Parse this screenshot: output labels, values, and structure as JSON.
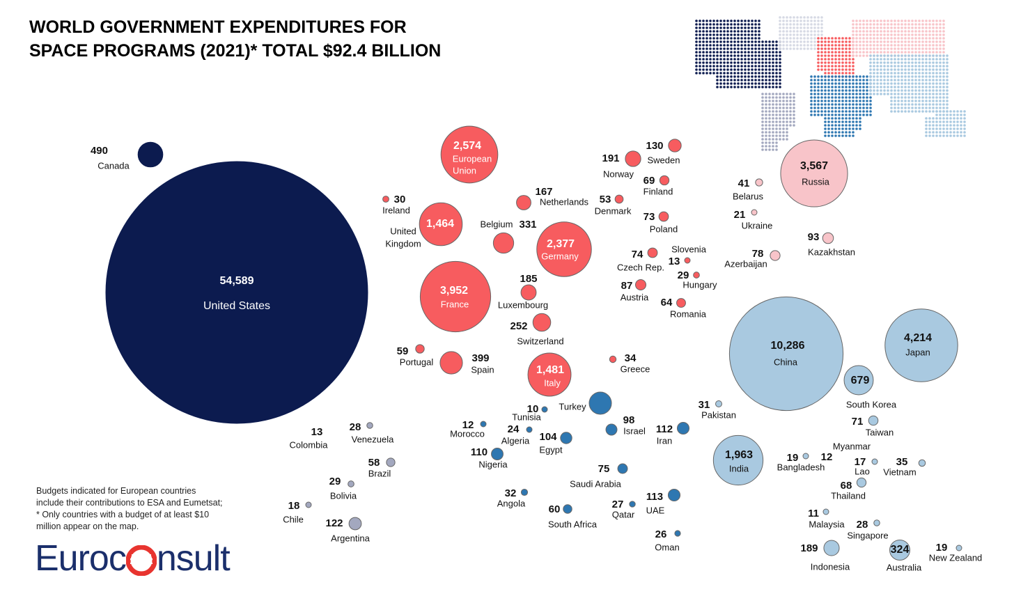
{
  "title": {
    "line1": "WORLD GOVERNMENT EXPENDITURES FOR",
    "line2": "SPACE PROGRAMS (2021)* TOTAL $92.4 BILLION"
  },
  "note": {
    "line1": "Budgets indicated for European countries",
    "line2": "include their contributions to ESA and Eumetsat;",
    "line3": "* Only countries with a budget of at least  $10",
    "line4": "million appear on the map."
  },
  "logo": {
    "text_left": "Euroc",
    "text_right": "nsult"
  },
  "colors": {
    "americas_north": "#0c1b4f",
    "americas_south": "#a3a8bf",
    "europe": "#f75c5f",
    "russia_cis": "#f8c4c9",
    "middle_east_africa": "#2e77b1",
    "asia": "#a9c9e0",
    "background": "#ffffff"
  },
  "chart_data": {
    "type": "bubble",
    "title": "WORLD GOVERNMENT EXPENDITURES FOR SPACE PROGRAMS (2021)* TOTAL $92.4 BILLION",
    "total": "$92.4 BILLION",
    "year": 2021,
    "points": [
      {
        "name": "United States",
        "value": 54589,
        "label": "54,589",
        "region": "americas_north"
      },
      {
        "name": "Canada",
        "value": 490,
        "label": "490",
        "region": "americas_north"
      },
      {
        "name": "Colombia",
        "value": 13,
        "label": "13",
        "region": "americas_south"
      },
      {
        "name": "Venezuela",
        "value": 28,
        "label": "28",
        "region": "americas_south"
      },
      {
        "name": "Brazil",
        "value": 58,
        "label": "58",
        "region": "americas_south"
      },
      {
        "name": "Bolivia",
        "value": 29,
        "label": "29",
        "region": "americas_south"
      },
      {
        "name": "Chile",
        "value": 18,
        "label": "18",
        "region": "americas_south"
      },
      {
        "name": "Argentina",
        "value": 122,
        "label": "122",
        "region": "americas_south"
      },
      {
        "name": "European Union",
        "value": 2574,
        "label": "2,574",
        "region": "europe"
      },
      {
        "name": "Ireland",
        "value": 30,
        "label": "30",
        "region": "europe"
      },
      {
        "name": "United Kingdom",
        "value": 1464,
        "label": "1,464",
        "region": "europe"
      },
      {
        "name": "Netherlands",
        "value": 167,
        "label": "167",
        "region": "europe"
      },
      {
        "name": "Belgium",
        "value": 331,
        "label": "331",
        "region": "europe"
      },
      {
        "name": "Germany",
        "value": 2377,
        "label": "2,377",
        "region": "europe"
      },
      {
        "name": "France",
        "value": 3952,
        "label": "3,952",
        "region": "europe"
      },
      {
        "name": "Luxembourg",
        "value": 185,
        "label": "185",
        "region": "europe"
      },
      {
        "name": "Switzerland",
        "value": 252,
        "label": "252",
        "region": "europe"
      },
      {
        "name": "Portugal",
        "value": 59,
        "label": "59",
        "region": "europe"
      },
      {
        "name": "Spain",
        "value": 399,
        "label": "399",
        "region": "europe"
      },
      {
        "name": "Italy",
        "value": 1481,
        "label": "1,481",
        "region": "europe"
      },
      {
        "name": "Norway",
        "value": 191,
        "label": "191",
        "region": "europe"
      },
      {
        "name": "Sweden",
        "value": 130,
        "label": "130",
        "region": "europe"
      },
      {
        "name": "Finland",
        "value": 69,
        "label": "69",
        "region": "europe"
      },
      {
        "name": "Denmark",
        "value": 53,
        "label": "53",
        "region": "europe"
      },
      {
        "name": "Poland",
        "value": 73,
        "label": "73",
        "region": "europe"
      },
      {
        "name": "Czech Rep.",
        "value": 74,
        "label": "74",
        "region": "europe"
      },
      {
        "name": "Slovenia",
        "value": 13,
        "label": "13",
        "region": "europe"
      },
      {
        "name": "Hungary",
        "value": 29,
        "label": "29",
        "region": "europe"
      },
      {
        "name": "Austria",
        "value": 87,
        "label": "87",
        "region": "europe"
      },
      {
        "name": "Romania",
        "value": 64,
        "label": "64",
        "region": "europe"
      },
      {
        "name": "Greece",
        "value": 34,
        "label": "34",
        "region": "europe"
      },
      {
        "name": "Russia",
        "value": 3567,
        "label": "3,567",
        "region": "russia_cis"
      },
      {
        "name": "Belarus",
        "value": 41,
        "label": "41",
        "region": "russia_cis"
      },
      {
        "name": "Ukraine",
        "value": 21,
        "label": "21",
        "region": "russia_cis"
      },
      {
        "name": "Kazakhstan",
        "value": 93,
        "label": "93",
        "region": "russia_cis"
      },
      {
        "name": "Azerbaijan",
        "value": 78,
        "label": "78",
        "region": "russia_cis"
      },
      {
        "name": "Turkey",
        "value": null,
        "label": "",
        "region": "middle_east_africa"
      },
      {
        "name": "Tunisia",
        "value": 10,
        "label": "10",
        "region": "middle_east_africa"
      },
      {
        "name": "Morocco",
        "value": 12,
        "label": "12",
        "region": "middle_east_africa"
      },
      {
        "name": "Algeria",
        "value": 24,
        "label": "24",
        "region": "middle_east_africa"
      },
      {
        "name": "Egypt",
        "value": 104,
        "label": "104",
        "region": "middle_east_africa"
      },
      {
        "name": "Nigeria",
        "value": 110,
        "label": "110",
        "region": "middle_east_africa"
      },
      {
        "name": "Israel",
        "value": 98,
        "label": "98",
        "region": "middle_east_africa"
      },
      {
        "name": "Iran",
        "value": 112,
        "label": "112",
        "region": "middle_east_africa"
      },
      {
        "name": "Saudi Arabia",
        "value": 75,
        "label": "75",
        "region": "middle_east_africa"
      },
      {
        "name": "Angola",
        "value": 32,
        "label": "32",
        "region": "middle_east_africa"
      },
      {
        "name": "South Africa",
        "value": 60,
        "label": "60",
        "region": "middle_east_africa"
      },
      {
        "name": "Qatar",
        "value": 27,
        "label": "27",
        "region": "middle_east_africa"
      },
      {
        "name": "UAE",
        "value": 113,
        "label": "113",
        "region": "middle_east_africa"
      },
      {
        "name": "Oman",
        "value": 26,
        "label": "26",
        "region": "middle_east_africa"
      },
      {
        "name": "China",
        "value": 10286,
        "label": "10,286",
        "region": "asia"
      },
      {
        "name": "Japan",
        "value": 4214,
        "label": "4,214",
        "region": "asia"
      },
      {
        "name": "South Korea",
        "value": 679,
        "label": "679",
        "region": "asia"
      },
      {
        "name": "Pakistan",
        "value": 31,
        "label": "31",
        "region": "asia"
      },
      {
        "name": "Taiwan",
        "value": 71,
        "label": "71",
        "region": "asia"
      },
      {
        "name": "India",
        "value": 1963,
        "label": "1,963",
        "region": "asia"
      },
      {
        "name": "Bangladesh",
        "value": 19,
        "label": "19",
        "region": "asia"
      },
      {
        "name": "Myanmar",
        "value": 12,
        "label": "12",
        "region": "asia"
      },
      {
        "name": "Lao",
        "value": 17,
        "label": "17",
        "region": "asia"
      },
      {
        "name": "Vietnam",
        "value": 35,
        "label": "35",
        "region": "asia"
      },
      {
        "name": "Thailand",
        "value": 68,
        "label": "68",
        "region": "asia"
      },
      {
        "name": "Malaysia",
        "value": 11,
        "label": "11",
        "region": "asia"
      },
      {
        "name": "Singapore",
        "value": 28,
        "label": "28",
        "region": "asia"
      },
      {
        "name": "Indonesia",
        "value": 189,
        "label": "189",
        "region": "asia"
      },
      {
        "name": "Australia",
        "value": 324,
        "label": "324",
        "region": "asia"
      },
      {
        "name": "New Zealand",
        "value": 19,
        "label": "19",
        "region": "asia"
      }
    ]
  }
}
